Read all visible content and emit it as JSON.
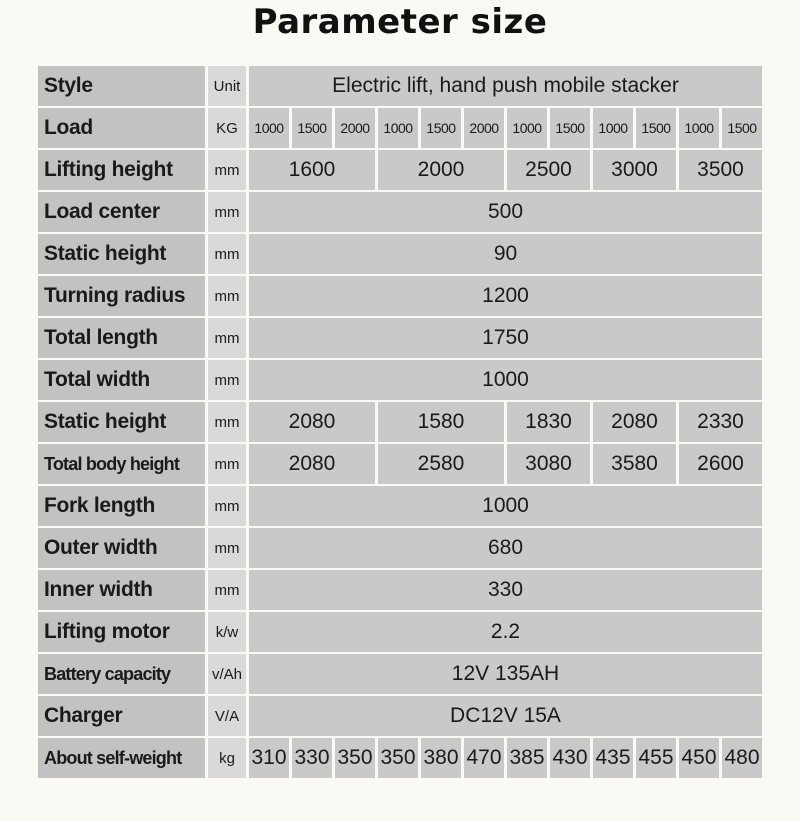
{
  "title": "Parameter size",
  "rows": [
    {
      "label": "Style",
      "unit": "Unit",
      "cells": [
        {
          "text": "Electric lift, hand push mobile stacker",
          "span": 12
        }
      ]
    },
    {
      "label": "Load",
      "unit": "KG",
      "small": true,
      "cells": [
        {
          "text": "1000",
          "span": 1
        },
        {
          "text": "1500",
          "span": 1
        },
        {
          "text": "2000",
          "span": 1
        },
        {
          "text": "1000",
          "span": 1
        },
        {
          "text": "1500",
          "span": 1
        },
        {
          "text": "2000",
          "span": 1
        },
        {
          "text": "1000",
          "span": 1
        },
        {
          "text": "1500",
          "span": 1
        },
        {
          "text": "1000",
          "span": 1
        },
        {
          "text": "1500",
          "span": 1
        },
        {
          "text": "1000",
          "span": 1
        },
        {
          "text": "1500",
          "span": 1
        }
      ]
    },
    {
      "label": "Lifting height",
      "unit": "mm",
      "cells": [
        {
          "text": "1600",
          "span": 3
        },
        {
          "text": "2000",
          "span": 3
        },
        {
          "text": "2500",
          "span": 2
        },
        {
          "text": "3000",
          "span": 2
        },
        {
          "text": "3500",
          "span": 2
        }
      ]
    },
    {
      "label": "Load center",
      "unit": "mm",
      "cells": [
        {
          "text": "500",
          "span": 12
        }
      ]
    },
    {
      "label": "Static height",
      "unit": "mm",
      "cells": [
        {
          "text": "90",
          "span": 12
        }
      ]
    },
    {
      "label": "Turning radius",
      "unit": "mm",
      "cells": [
        {
          "text": "1200",
          "span": 12
        }
      ]
    },
    {
      "label": "Total length",
      "unit": "mm",
      "cells": [
        {
          "text": "1750",
          "span": 12
        }
      ]
    },
    {
      "label": "Total width",
      "unit": "mm",
      "cells": [
        {
          "text": "1000",
          "span": 12
        }
      ]
    },
    {
      "label": "Static height",
      "unit": "mm",
      "cells": [
        {
          "text": "2080",
          "span": 3
        },
        {
          "text": "1580",
          "span": 3
        },
        {
          "text": "1830",
          "span": 2
        },
        {
          "text": "2080",
          "span": 2
        },
        {
          "text": "2330",
          "span": 2
        }
      ]
    },
    {
      "label": "Total body height",
      "unit": "mm",
      "smLabel": true,
      "cells": [
        {
          "text": "2080",
          "span": 3
        },
        {
          "text": "2580",
          "span": 3
        },
        {
          "text": "3080",
          "span": 2
        },
        {
          "text": "3580",
          "span": 2
        },
        {
          "text": "2600",
          "span": 2
        }
      ]
    },
    {
      "label": "Fork length",
      "unit": "mm",
      "cells": [
        {
          "text": "1000",
          "span": 12
        }
      ]
    },
    {
      "label": "Outer width",
      "unit": "mm",
      "cells": [
        {
          "text": "680",
          "span": 12
        }
      ]
    },
    {
      "label": "Inner width",
      "unit": "mm",
      "cells": [
        {
          "text": "330",
          "span": 12
        }
      ]
    },
    {
      "label": "Lifting motor",
      "unit": "k/w",
      "cells": [
        {
          "text": "2.2",
          "span": 12
        }
      ]
    },
    {
      "label": "Battery capacity",
      "unit": "v/Ah",
      "smLabel": true,
      "cells": [
        {
          "text": "12V 135AH",
          "span": 12
        }
      ]
    },
    {
      "label": "Charger",
      "unit": "V/A",
      "cells": [
        {
          "text": "DC12V 15A",
          "span": 12
        }
      ]
    },
    {
      "label": "About self-weight",
      "unit": "kg",
      "smLabel": true,
      "cells": [
        {
          "text": "310",
          "span": 1
        },
        {
          "text": "330",
          "span": 1
        },
        {
          "text": "350",
          "span": 1
        },
        {
          "text": "350",
          "span": 1
        },
        {
          "text": "380",
          "span": 1
        },
        {
          "text": "470",
          "span": 1
        },
        {
          "text": "385",
          "span": 1
        },
        {
          "text": "430",
          "span": 1
        },
        {
          "text": "435",
          "span": 1
        },
        {
          "text": "455",
          "span": 1
        },
        {
          "text": "450",
          "span": 1
        },
        {
          "text": "480",
          "span": 1
        }
      ]
    }
  ]
}
